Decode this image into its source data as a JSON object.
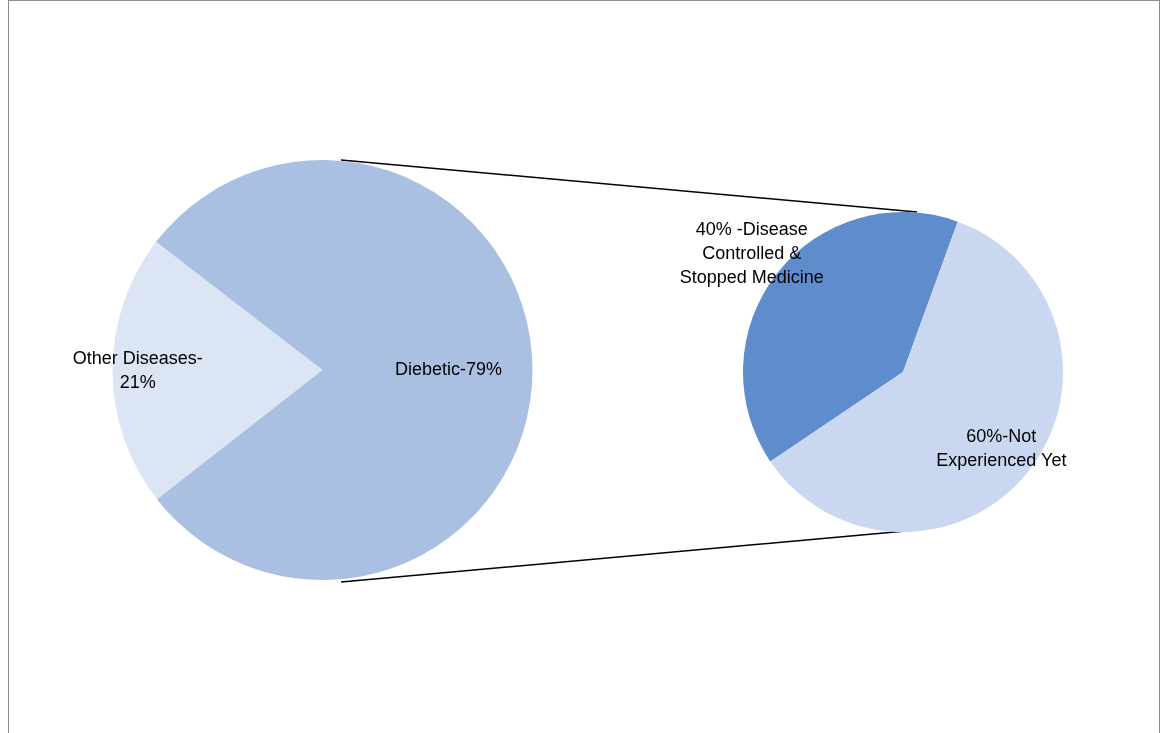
{
  "chart_data": [
    {
      "type": "pie",
      "categories": [
        "Other Diseases-21%",
        "Diebetic-79%"
      ],
      "values": [
        21,
        79
      ],
      "colors": [
        "#dbe5f4",
        "#a9c0e3"
      ]
    },
    {
      "type": "pie",
      "categories": [
        "40% -Disease Controlled & Stopped Medicine",
        "60%-Not Experienced Yet"
      ],
      "values": [
        40,
        60
      ],
      "colors": [
        "#5f8ccc",
        "#c9d8f0"
      ]
    }
  ]
}
